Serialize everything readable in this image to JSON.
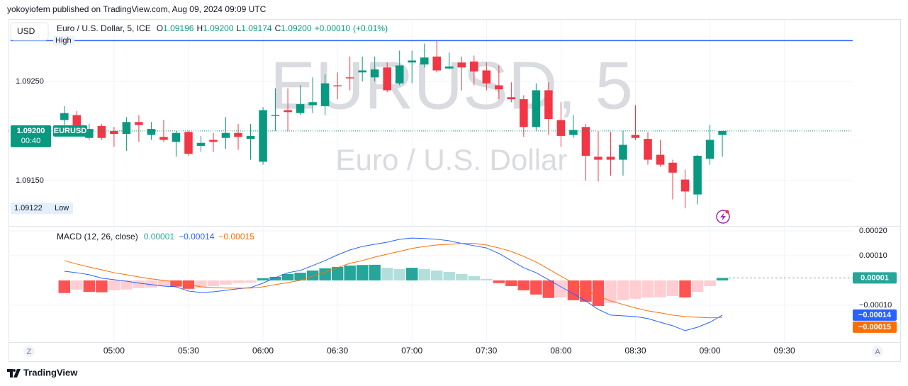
{
  "header": {
    "publisher_line": "yokoyiofem published on TradingView.com, Aug 09, 2024 09:09 UTC",
    "brand": "TradingView"
  },
  "toolbar": {
    "currency": "USD",
    "left_button": "Z",
    "right_button": "A"
  },
  "chart_data": [
    {
      "type": "candlestick",
      "title": "Euro / U.S. Dollar, 5, ICE",
      "watermark_symbol": "EURUSD, 5",
      "watermark_name": "Euro / U.S. Dollar",
      "symbol": "EURUSD",
      "countdown": "00:40",
      "ohlc_keys": [
        "O",
        "H",
        "L",
        "C"
      ],
      "change": {
        "value": 0.0001,
        "label": "+0.00010"
      },
      "change_percent": {
        "value": 0.01,
        "label": "(+0.01%)"
      },
      "up_color": "#089981",
      "down_color": "#f23645",
      "ylim": [
        1.09105,
        1.09312
      ],
      "yticks": [
        {
          "value": 1.0915,
          "label": "1.09150"
        },
        {
          "value": 1.0925,
          "label": "1.09250"
        }
      ],
      "y_axis_side": "left",
      "grid": true,
      "high_marker": {
        "label": "High",
        "value": 1.09291
      },
      "low_marker": {
        "label": "Low",
        "value": 1.09122,
        "value_label": "1.09122"
      },
      "categories": [
        null,
        null,
        null,
        null,
        null,
        null,
        null,
        null,
        "05:00",
        null,
        null,
        null,
        null,
        null,
        "05:30",
        null,
        null,
        null,
        null,
        null,
        "06:00",
        null,
        null,
        null,
        null,
        null,
        "06:30",
        null,
        null,
        null,
        null,
        null,
        "07:00",
        null,
        null,
        null,
        null,
        null,
        "07:30",
        null,
        null,
        null,
        null,
        null,
        "08:00",
        null,
        null,
        null,
        null,
        null,
        "08:30",
        null,
        null,
        null,
        null,
        null,
        "09:00",
        null,
        null,
        null,
        null,
        null,
        "09:30",
        null,
        null,
        null,
        null,
        null
      ],
      "ohlc": [
        null,
        null,
        null,
        null,
        [
          1.09211,
          1.09225,
          1.09206,
          1.09218
        ],
        [
          1.09216,
          1.0922,
          1.092,
          1.09204
        ],
        [
          1.09193,
          1.09207,
          1.09191,
          1.09202
        ],
        [
          1.09205,
          1.09207,
          1.09191,
          1.09193
        ],
        [
          1.092,
          1.09204,
          1.09184,
          1.09197
        ],
        [
          1.09197,
          1.09214,
          1.0918,
          1.09209
        ],
        [
          1.09209,
          1.09216,
          1.09189,
          1.09206
        ],
        [
          1.09196,
          1.09209,
          1.09191,
          1.09202
        ],
        [
          1.09194,
          1.09211,
          1.09189,
          1.09191
        ],
        [
          1.09189,
          1.092,
          1.09174,
          1.09198
        ],
        [
          1.09199,
          1.092,
          1.09175,
          1.09177
        ],
        [
          1.09185,
          1.09195,
          1.09179,
          1.09188
        ],
        [
          1.09191,
          1.09198,
          1.09179,
          1.09189
        ],
        [
          1.09193,
          1.09214,
          1.09182,
          1.09198
        ],
        [
          1.09198,
          1.09207,
          1.09181,
          1.09194
        ],
        [
          1.09192,
          1.09207,
          1.09171,
          1.09195
        ],
        [
          1.09169,
          1.09224,
          1.09166,
          1.09221
        ],
        [
          1.09215,
          1.09243,
          1.092,
          1.09216
        ],
        [
          1.09221,
          1.09243,
          1.092,
          1.09219
        ],
        [
          1.09218,
          1.09246,
          1.09216,
          1.09227
        ],
        [
          1.09226,
          1.09254,
          1.09218,
          1.09229
        ],
        [
          1.09225,
          1.09257,
          1.09216,
          1.09248
        ],
        [
          1.09246,
          1.09259,
          1.09232,
          1.09245
        ],
        [
          1.09254,
          1.09275,
          1.09241,
          1.09253
        ],
        [
          1.09259,
          1.09275,
          1.0925,
          1.09261
        ],
        [
          1.09254,
          1.09275,
          1.0925,
          1.09262
        ],
        [
          1.09264,
          1.09269,
          1.09239,
          1.09241
        ],
        [
          1.09248,
          1.09281,
          1.09246,
          1.09266
        ],
        [
          1.09269,
          1.09281,
          1.09248,
          1.09271
        ],
        [
          1.09267,
          1.09288,
          1.09264,
          1.09274
        ],
        [
          1.09275,
          1.09291,
          1.09259,
          1.09261
        ],
        [
          1.09263,
          1.09279,
          1.09262,
          1.09265
        ],
        [
          1.09269,
          1.09275,
          1.09241,
          1.09264
        ],
        [
          1.0927,
          1.09276,
          1.09246,
          1.0926
        ],
        [
          1.09261,
          1.09269,
          1.09241,
          1.09248
        ],
        [
          1.09246,
          1.09266,
          1.09232,
          1.09242
        ],
        [
          1.09234,
          1.09249,
          1.09229,
          1.09232
        ],
        [
          1.09232,
          1.09236,
          1.09194,
          1.09204
        ],
        [
          1.09204,
          1.09248,
          1.092,
          1.09241
        ],
        [
          1.09241,
          1.09249,
          1.09196,
          1.09212
        ],
        [
          1.09211,
          1.09229,
          1.09184,
          1.09195
        ],
        [
          1.09196,
          1.09216,
          1.09193,
          1.09201
        ],
        [
          1.09204,
          1.09207,
          1.0915,
          1.09175
        ],
        [
          1.09174,
          1.092,
          1.09149,
          1.09171
        ],
        [
          1.09174,
          1.09199,
          1.09155,
          1.09171
        ],
        [
          1.09171,
          1.092,
          1.09155,
          1.09186
        ],
        [
          1.09196,
          1.09226,
          1.09191,
          1.09193
        ],
        [
          1.09192,
          1.09199,
          1.09166,
          1.09171
        ],
        [
          1.09176,
          1.09191,
          1.09164,
          1.09166
        ],
        [
          1.09168,
          1.09171,
          1.09131,
          1.09158
        ],
        [
          1.09151,
          1.09161,
          1.09122,
          1.09139
        ],
        [
          1.09136,
          1.09176,
          1.09126,
          1.09175
        ],
        [
          1.09172,
          1.09206,
          1.09166,
          1.09191
        ],
        [
          1.09196,
          1.092,
          1.09174,
          1.092
        ],
        null,
        null,
        null,
        null,
        null,
        null,
        null,
        null,
        null,
        null
      ],
      "value_labels": [
        null,
        null,
        null,
        null,
        null,
        null,
        null,
        null,
        null,
        null,
        null,
        null,
        null,
        null,
        null,
        null,
        null,
        null,
        null,
        null,
        null,
        null,
        null,
        null,
        null,
        null,
        null,
        null,
        null,
        null,
        null,
        null,
        null,
        null,
        null,
        null,
        null,
        null,
        null,
        null,
        null,
        null,
        null,
        null,
        null,
        null,
        null,
        null,
        null,
        null,
        null,
        null,
        null,
        null,
        null,
        null,
        null,
        [
          "1.09196",
          "1.09200",
          "1.09174",
          "1.09200"
        ],
        null,
        null,
        null,
        null,
        null,
        null,
        null,
        null,
        null,
        null
      ]
    },
    {
      "type": "macd",
      "title": "MACD (12, 26, close)",
      "ylim": [
        -0.000249,
        0.000217
      ],
      "yticks": [
        {
          "value": 0.0002,
          "label": "0.00020"
        },
        {
          "value": 0.0001,
          "label": "0.00010"
        },
        {
          "value": -0.0001,
          "label": "−0.00010"
        }
      ],
      "y_axis_side": "right",
      "grid": true,
      "series": [
        {
          "kind": "histogram",
          "colors": {
            "positive_rising": "#26a69a",
            "positive_falling": "#b2dfdb",
            "negative_falling": "#ff5252",
            "negative_rising": "#ffcdd2"
          },
          "values": [
            null,
            null,
            null,
            null,
            -5.1e-05,
            -3.7e-05,
            -4.6e-05,
            -4.8e-05,
            -4e-05,
            -3.7e-05,
            -3.1e-05,
            -2.9e-05,
            -2.3e-05,
            -2.5e-05,
            -3.4e-05,
            -2.9e-05,
            -2.3e-05,
            -1.7e-05,
            -1.1e-05,
            -9e-06,
            9e-06,
            1.4e-05,
            2.6e-05,
            3.1e-05,
            4e-05,
            4.9e-05,
            5.4e-05,
            6e-05,
            6.2e-05,
            6.3e-05,
            5.1e-05,
            4.6e-05,
            5.1e-05,
            4.6e-05,
            4e-05,
            3.4e-05,
            2.6e-05,
            1.7e-05,
            6e-06,
            -1.1e-05,
            -2.3e-05,
            -4e-05,
            -5.7e-05,
            -7.1e-05,
            -6.9e-05,
            -8e-05,
            -8.6e-05,
            -0.000103,
            -9.1e-05,
            -8e-05,
            -7.4e-05,
            -6.9e-05,
            -6.8e-05,
            -6.3e-05,
            -6.9e-05,
            -4.6e-05,
            -2.3e-05,
            1e-05,
            null,
            null,
            null,
            null,
            null,
            null,
            null,
            null,
            null,
            null
          ],
          "value_labels": [
            null,
            null,
            null,
            null,
            null,
            null,
            null,
            null,
            null,
            null,
            null,
            null,
            null,
            null,
            null,
            null,
            null,
            null,
            null,
            null,
            null,
            null,
            null,
            null,
            null,
            null,
            null,
            null,
            null,
            null,
            null,
            null,
            null,
            null,
            null,
            null,
            null,
            null,
            null,
            null,
            null,
            null,
            null,
            null,
            null,
            null,
            null,
            null,
            null,
            null,
            null,
            null,
            null,
            null,
            null,
            null,
            null,
            "0.00001",
            null,
            null,
            null,
            null,
            null,
            null,
            null,
            null,
            null,
            null
          ]
        },
        {
          "kind": "line",
          "color": "#2962ff",
          "values": [
            null,
            null,
            null,
            null,
            3.7e-05,
            3.1e-05,
            2.3e-05,
            9e-06,
            3e-06,
            -3e-06,
            -1.1e-05,
            -1.7e-05,
            -2.3e-05,
            -2.6e-05,
            -4.3e-05,
            -4.9e-05,
            -4.6e-05,
            -4e-05,
            -3.4e-05,
            -2.9e-05,
            -1.1e-05,
            1.1e-05,
            3.1e-05,
            4e-05,
            6e-05,
            8e-05,
            0.000103,
            0.000123,
            0.000137,
            0.000146,
            0.000154,
            0.000166,
            0.000171,
            0.000169,
            0.000166,
            0.00016,
            0.000149,
            0.00014,
            0.000131,
            0.000109,
            8e-05,
            5.1e-05,
            3.1e-05,
            3e-06,
            -2.6e-05,
            -5.4e-05,
            -8.3e-05,
            -0.000117,
            -0.00014,
            -0.000143,
            -0.000146,
            -0.000154,
            -0.000169,
            -0.000183,
            -0.000203,
            -0.000189,
            -0.000169,
            -0.00014,
            null,
            null,
            null,
            null,
            null,
            null,
            null,
            null,
            null,
            null
          ],
          "value_labels": [
            null,
            null,
            null,
            null,
            null,
            null,
            null,
            null,
            null,
            null,
            null,
            null,
            null,
            null,
            null,
            null,
            null,
            null,
            null,
            null,
            null,
            null,
            null,
            null,
            null,
            null,
            null,
            null,
            null,
            null,
            null,
            null,
            null,
            null,
            null,
            null,
            null,
            null,
            null,
            null,
            null,
            null,
            null,
            null,
            null,
            null,
            null,
            null,
            null,
            null,
            null,
            null,
            null,
            null,
            null,
            null,
            null,
            "−0.00014",
            null,
            null,
            null,
            null,
            null,
            null,
            null,
            null,
            null,
            null
          ]
        },
        {
          "kind": "line",
          "color": "#ff6d00",
          "values": [
            null,
            null,
            null,
            null,
            8e-05,
            6.6e-05,
            5.4e-05,
            4.3e-05,
            3.1e-05,
            2.3e-05,
            1.4e-05,
            6e-06,
            0,
            -6e-06,
            -1.7e-05,
            -2.6e-05,
            -2.9e-05,
            -3.1e-05,
            -3.1e-05,
            -3.1e-05,
            -2.6e-05,
            -1.7e-05,
            -9e-06,
            0,
            1.7e-05,
            3.4e-05,
            5.1e-05,
            6.9e-05,
            8e-05,
            9.4e-05,
            0.000106,
            0.000117,
            0.000129,
            0.000137,
            0.000143,
            0.000146,
            0.000149,
            0.000149,
            0.000143,
            0.000131,
            0.000117,
            9.7e-05,
            7.4e-05,
            4.6e-05,
            1.7e-05,
            -1.1e-05,
            -4e-05,
            -6.3e-05,
            -8.3e-05,
            -9.7e-05,
            -0.000111,
            -0.000123,
            -0.000131,
            -0.00014,
            -0.000146,
            -0.000149,
            -0.000151,
            -0.000149,
            null,
            null,
            null,
            null,
            null,
            null,
            null,
            null,
            null,
            null
          ],
          "value_labels": [
            null,
            null,
            null,
            null,
            null,
            null,
            null,
            null,
            null,
            null,
            null,
            null,
            null,
            null,
            null,
            null,
            null,
            null,
            null,
            null,
            null,
            null,
            null,
            null,
            null,
            null,
            null,
            null,
            null,
            null,
            null,
            null,
            null,
            null,
            null,
            null,
            null,
            null,
            null,
            null,
            null,
            null,
            null,
            null,
            null,
            null,
            null,
            null,
            null,
            null,
            null,
            null,
            null,
            null,
            null,
            null,
            null,
            "−0.00015",
            null,
            null,
            null,
            null,
            null,
            null,
            null,
            null,
            null,
            null
          ]
        }
      ]
    }
  ]
}
